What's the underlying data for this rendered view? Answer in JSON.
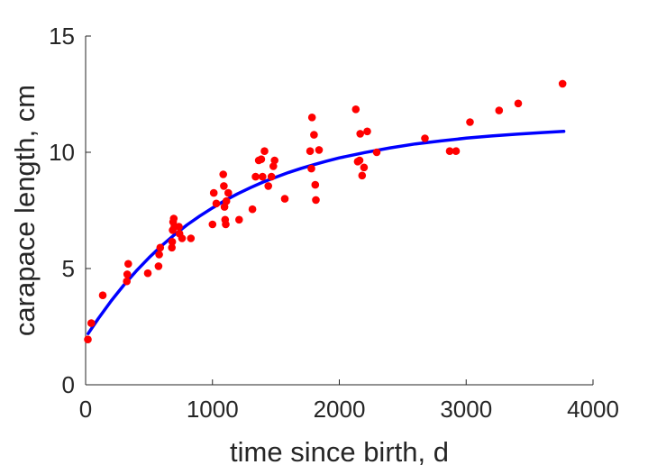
{
  "chart_data": {
    "type": "scatter",
    "xlabel": "time since birth, d",
    "ylabel": "carapace length, cm",
    "xlim": [
      0,
      4000
    ],
    "ylim": [
      0,
      15
    ],
    "xticks": [
      0,
      1000,
      2000,
      3000,
      4000
    ],
    "yticks": [
      0,
      5,
      10,
      15
    ],
    "xtick_labels": [
      "0",
      "1000",
      "2000",
      "3000",
      "4000"
    ],
    "ytick_labels": [
      "0",
      "5",
      "10",
      "15"
    ],
    "grid": false,
    "box": false,
    "colors": {
      "points": "#ff0000",
      "fit_line": "#0000ff",
      "axis": "#262626"
    },
    "series": [
      {
        "kind": "points",
        "x": [
          18,
          45,
          135,
          325,
          328,
          336,
          490,
          575,
          580,
          588,
          680,
          683,
          686,
          690,
          695,
          700,
          735,
          740,
          760,
          830,
          1000,
          1010,
          1030,
          1085,
          1090,
          1095,
          1100,
          1105,
          1110,
          1125,
          1210,
          1315,
          1340,
          1365,
          1385,
          1395,
          1410,
          1440,
          1465,
          1480,
          1490,
          1570,
          1770,
          1780,
          1785,
          1800,
          1810,
          1815,
          1840,
          2130,
          2145,
          2160,
          2165,
          2180,
          2195,
          2220,
          2295,
          2675,
          2870,
          2920,
          3030,
          3260,
          3410,
          3760
        ],
        "y": [
          1.95,
          2.65,
          3.85,
          4.45,
          4.75,
          5.2,
          4.8,
          5.1,
          5.6,
          5.9,
          5.9,
          6.15,
          6.65,
          7.0,
          7.15,
          6.8,
          6.8,
          6.5,
          6.3,
          6.3,
          6.9,
          8.25,
          7.8,
          9.05,
          8.55,
          7.65,
          7.1,
          6.9,
          7.9,
          8.25,
          7.1,
          7.55,
          8.95,
          9.65,
          9.7,
          8.95,
          10.05,
          8.55,
          8.95,
          9.4,
          9.65,
          8.0,
          10.05,
          9.3,
          11.5,
          10.75,
          8.6,
          7.95,
          10.1,
          11.85,
          9.6,
          9.65,
          10.8,
          9.0,
          9.35,
          10.9,
          10.0,
          10.6,
          10.05,
          10.05,
          11.3,
          11.8,
          12.1,
          12.95
        ]
      },
      {
        "kind": "line",
        "x": [
          20,
          100,
          200,
          300,
          400,
          500,
          600,
          700,
          800,
          900,
          1000,
          1100,
          1200,
          1300,
          1400,
          1500,
          1600,
          1700,
          1800,
          1900,
          2000,
          2200,
          2400,
          2600,
          2800,
          3000,
          3200,
          3400,
          3600,
          3770
        ],
        "y": [
          2.2,
          2.85,
          3.6,
          4.28,
          4.9,
          5.47,
          5.98,
          6.45,
          6.88,
          7.26,
          7.61,
          7.93,
          8.22,
          8.48,
          8.72,
          8.93,
          9.13,
          9.31,
          9.47,
          9.62,
          9.76,
          9.99,
          10.19,
          10.36,
          10.49,
          10.61,
          10.7,
          10.78,
          10.85,
          10.9
        ]
      }
    ]
  }
}
